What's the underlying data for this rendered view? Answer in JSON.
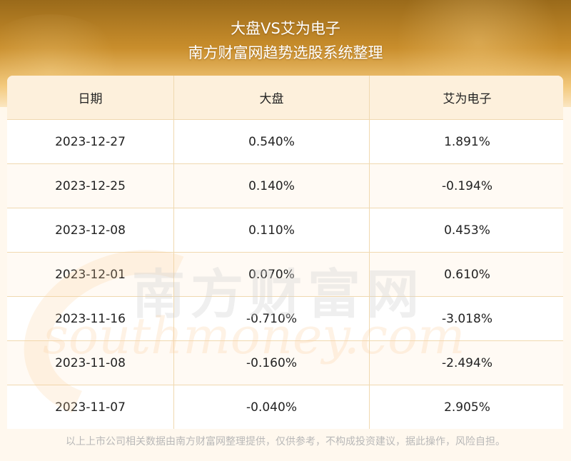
{
  "header": {
    "title": "大盘VS艾为电子",
    "subtitle": "南方财富网趋势选股系统整理"
  },
  "table": {
    "columns": [
      "日期",
      "大盘",
      "艾为电子"
    ],
    "rows": [
      [
        "2023-12-27",
        "0.540%",
        "1.891%"
      ],
      [
        "2023-12-25",
        "0.140%",
        "-0.194%"
      ],
      [
        "2023-12-08",
        "0.110%",
        "0.453%"
      ],
      [
        "2023-12-01",
        "0.070%",
        "0.610%"
      ],
      [
        "2023-11-16",
        "-0.710%",
        "-3.018%"
      ],
      [
        "2023-11-08",
        "-0.160%",
        "-2.494%"
      ],
      [
        "2023-11-07",
        "-0.040%",
        "2.905%"
      ]
    ]
  },
  "watermark": {
    "cn": "南方财富网",
    "en": "southmoney.com"
  },
  "footer": {
    "disclaimer": "以上上市公司相关数据由南方财富网整理提供，仅供参考，不构成投资建议，据此操作，风险自担。"
  },
  "colors": {
    "banner_top": "#9a6a1a",
    "banner_bottom": "#fbe6c2",
    "header_row": "#fdf0dc",
    "grid_line": "#f0d9b0"
  }
}
